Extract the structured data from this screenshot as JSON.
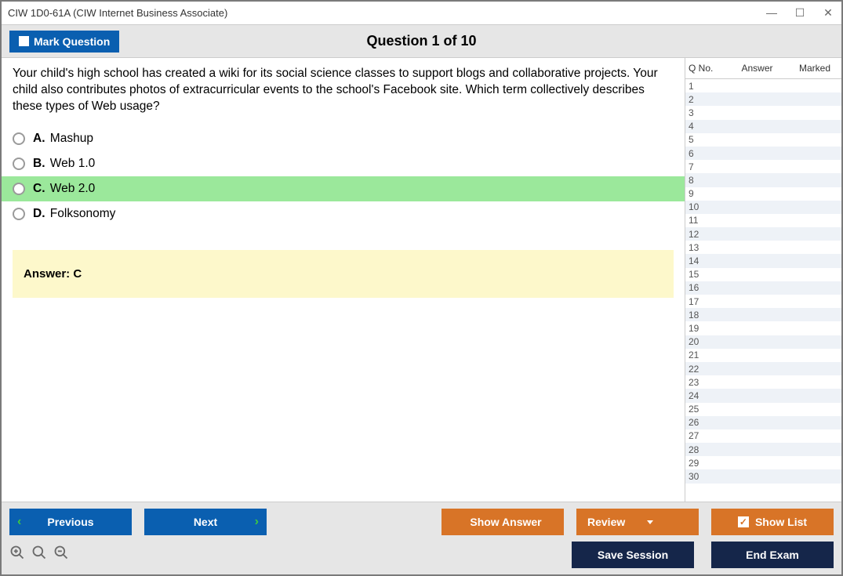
{
  "window": {
    "title": "CIW 1D0-61A (CIW Internet Business Associate)"
  },
  "header": {
    "mark_label": "Mark Question",
    "question_title": "Question 1 of 10"
  },
  "question": {
    "text": "Your child's high school has created a wiki for its social science classes to support blogs and collaborative projects. Your child also contributes photos of extracurricular events to the school's Facebook site. Which term collectively describes these types of Web usage?",
    "options": [
      {
        "letter": "A.",
        "text": "Mashup",
        "correct": false
      },
      {
        "letter": "B.",
        "text": "Web 1.0",
        "correct": false
      },
      {
        "letter": "C.",
        "text": "Web 2.0",
        "correct": true
      },
      {
        "letter": "D.",
        "text": "Folksonomy",
        "correct": false
      }
    ],
    "answer_box": "Answer: C"
  },
  "sidebar": {
    "cols": {
      "qno": "Q No.",
      "answer": "Answer",
      "marked": "Marked"
    },
    "count": 30,
    "alt_row_bg": "#eef2f7"
  },
  "footer": {
    "previous": "Previous",
    "next": "Next",
    "show_answer": "Show Answer",
    "review": "Review",
    "show_list": "Show List",
    "save_session": "Save Session",
    "end_exam": "End Exam"
  },
  "colors": {
    "blue": "#0a5fb0",
    "orange": "#d87427",
    "navy": "#15264a",
    "correct_bg": "#9be89b",
    "answer_bg": "#fdf8cb",
    "header_bg": "#e6e6e6"
  }
}
